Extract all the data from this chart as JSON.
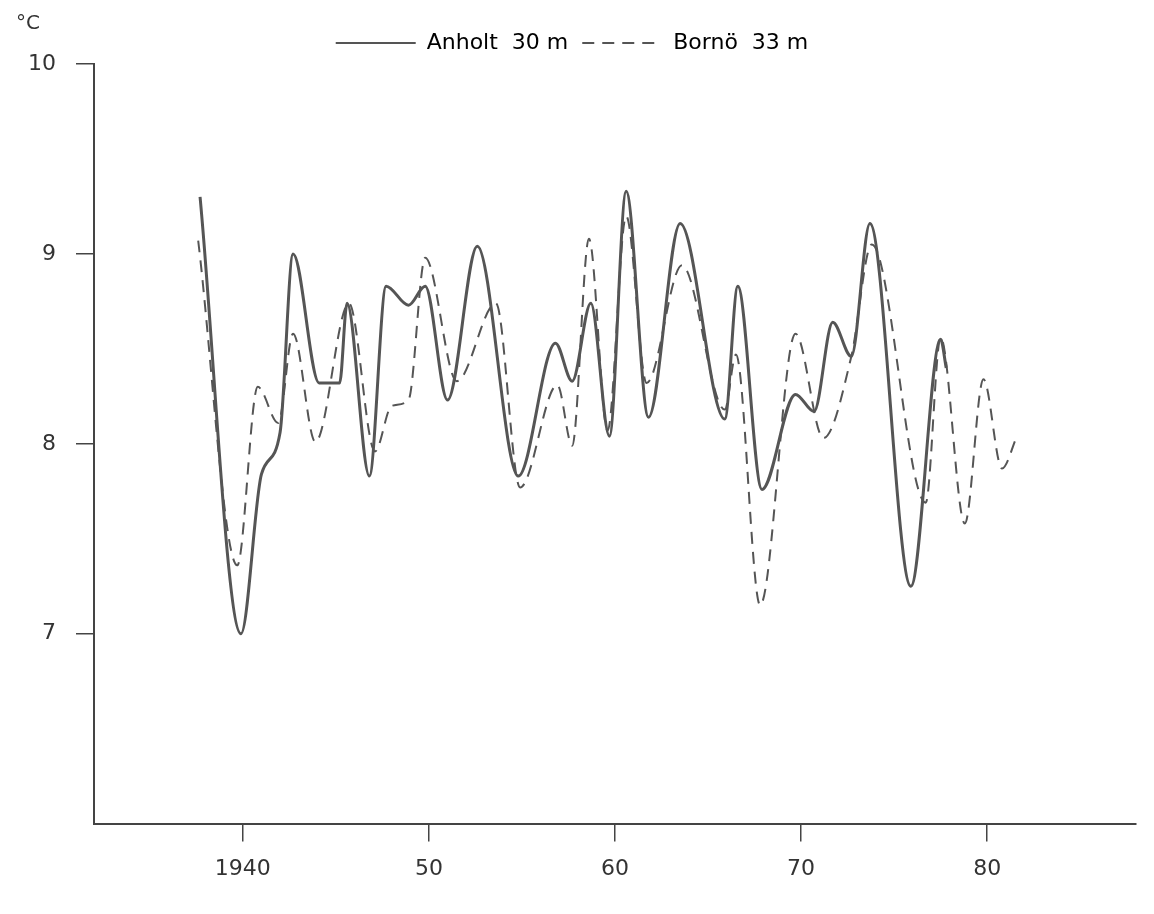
{
  "chart_data": {
    "type": "line",
    "ylabel": "°C",
    "xlim": [
      1932,
      1988
    ],
    "ylim": [
      6,
      10
    ],
    "xticks": [
      1940,
      {
        "value": 1950,
        "label": "50"
      },
      {
        "value": 1960,
        "label": "60"
      },
      {
        "value": 1970,
        "label": "70"
      },
      {
        "value": 1980,
        "label": "80"
      }
    ],
    "yticks": [
      7,
      8,
      9,
      10
    ],
    "grid": false,
    "legend": "top",
    "marker": "none",
    "series": [
      {
        "name": "Anholt  30 m",
        "color": "#555555",
        "line_style": "solid",
        "x": [
          1937.7,
          1939.9,
          1941.0,
          1942.0,
          1942.7,
          1944.1,
          1945.2,
          1945.6,
          1946.8,
          1947.7,
          1948.9,
          1949.8,
          1951.0,
          1952.6,
          1954.8,
          1956.8,
          1957.7,
          1958.7,
          1959.7,
          1960.6,
          1961.8,
          1963.5,
          1965.9,
          1966.6,
          1967.9,
          1969.7,
          1970.7,
          1971.7,
          1972.7,
          1973.7,
          1975.9,
          1977.5,
          1977.8
        ],
        "values": [
          9.3,
          7.0,
          7.84,
          8.06,
          9.0,
          8.32,
          8.32,
          8.74,
          7.83,
          8.83,
          8.73,
          8.83,
          8.23,
          9.04,
          7.83,
          8.53,
          8.33,
          8.74,
          8.04,
          9.33,
          8.14,
          9.16,
          8.13,
          8.83,
          7.76,
          8.26,
          8.17,
          8.64,
          8.46,
          9.16,
          7.25,
          8.55,
          8.4
        ]
      },
      {
        "name": "Bornö  33 m",
        "color": "#555555",
        "line_style": "dashed",
        "x": [
          1937.6,
          1939.7,
          1940.8,
          1941.9,
          1942.7,
          1943.9,
          1945.7,
          1947.1,
          1948.0,
          1948.9,
          1949.8,
          1951.5,
          1953.6,
          1954.9,
          1956.9,
          1957.7,
          1958.6,
          1959.6,
          1960.6,
          1961.7,
          1963.6,
          1965.9,
          1966.5,
          1967.8,
          1969.7,
          1971.2,
          1972.7,
          1973.8,
          1976.7,
          1977.5,
          1978.8,
          1979.8,
          1980.8,
          1981.6
        ],
        "values": [
          9.07,
          7.36,
          8.3,
          8.11,
          8.58,
          8.01,
          8.74,
          7.96,
          8.2,
          8.23,
          8.98,
          8.33,
          8.74,
          7.77,
          8.31,
          7.99,
          9.08,
          8.07,
          9.2,
          8.32,
          8.94,
          8.18,
          8.47,
          7.15,
          8.58,
          8.03,
          8.46,
          9.05,
          7.69,
          8.56,
          7.58,
          8.34,
          7.87,
          8.04
        ]
      }
    ]
  }
}
